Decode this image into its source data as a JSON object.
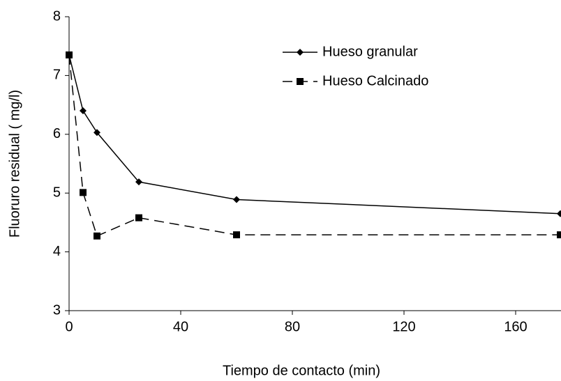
{
  "chart_data": {
    "type": "line",
    "xlabel": "Tiempo de contacto (min)",
    "ylabel": "Fluoruro residual ( mg/l)",
    "xlim": [
      0,
      176
    ],
    "xticks": [
      0,
      40,
      80,
      120,
      160
    ],
    "ylim": [
      3,
      8
    ],
    "yticks": [
      3,
      4,
      5,
      6,
      7,
      8
    ],
    "grid": false,
    "legend": "upper right",
    "series": [
      {
        "name": "Hueso granular",
        "color": "#000000",
        "marker": "diamond",
        "dash": false,
        "x": [
          0,
          5,
          10,
          25,
          60,
          176
        ],
        "values": [
          7.35,
          6.4,
          6.03,
          5.19,
          4.89,
          4.65
        ]
      },
      {
        "name": "Hueso Calcinado",
        "color": "#000000",
        "marker": "square",
        "dash": true,
        "x": [
          0,
          5,
          10,
          25,
          60,
          176
        ],
        "values": [
          7.35,
          5.01,
          4.27,
          4.58,
          4.29,
          4.29
        ]
      }
    ]
  }
}
